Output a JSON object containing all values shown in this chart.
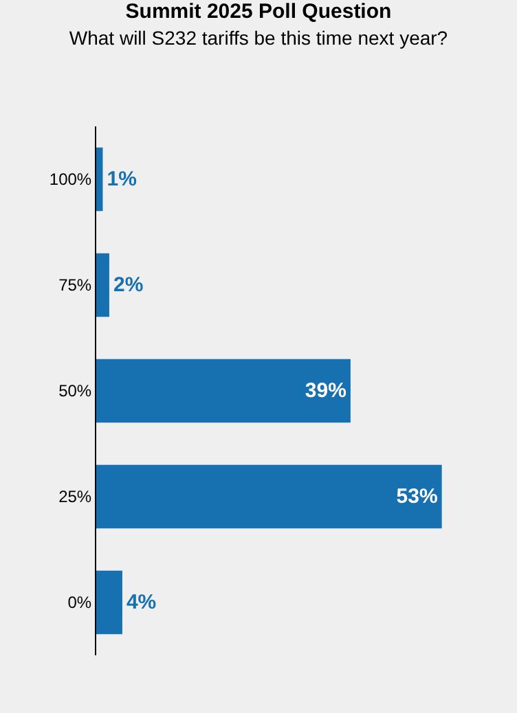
{
  "chart_data": {
    "type": "bar",
    "orientation": "horizontal",
    "title": "Summit 2025 Poll Question",
    "subtitle": "What will S232 tariffs be this time next year?",
    "categories": [
      "100%",
      "75%",
      "50%",
      "25%",
      "0%"
    ],
    "values": [
      1,
      2,
      39,
      53,
      4
    ],
    "value_labels": [
      "1%",
      "2%",
      "39%",
      "53%",
      "4%"
    ],
    "color": "#1771b0",
    "grid": false,
    "legend": false
  }
}
